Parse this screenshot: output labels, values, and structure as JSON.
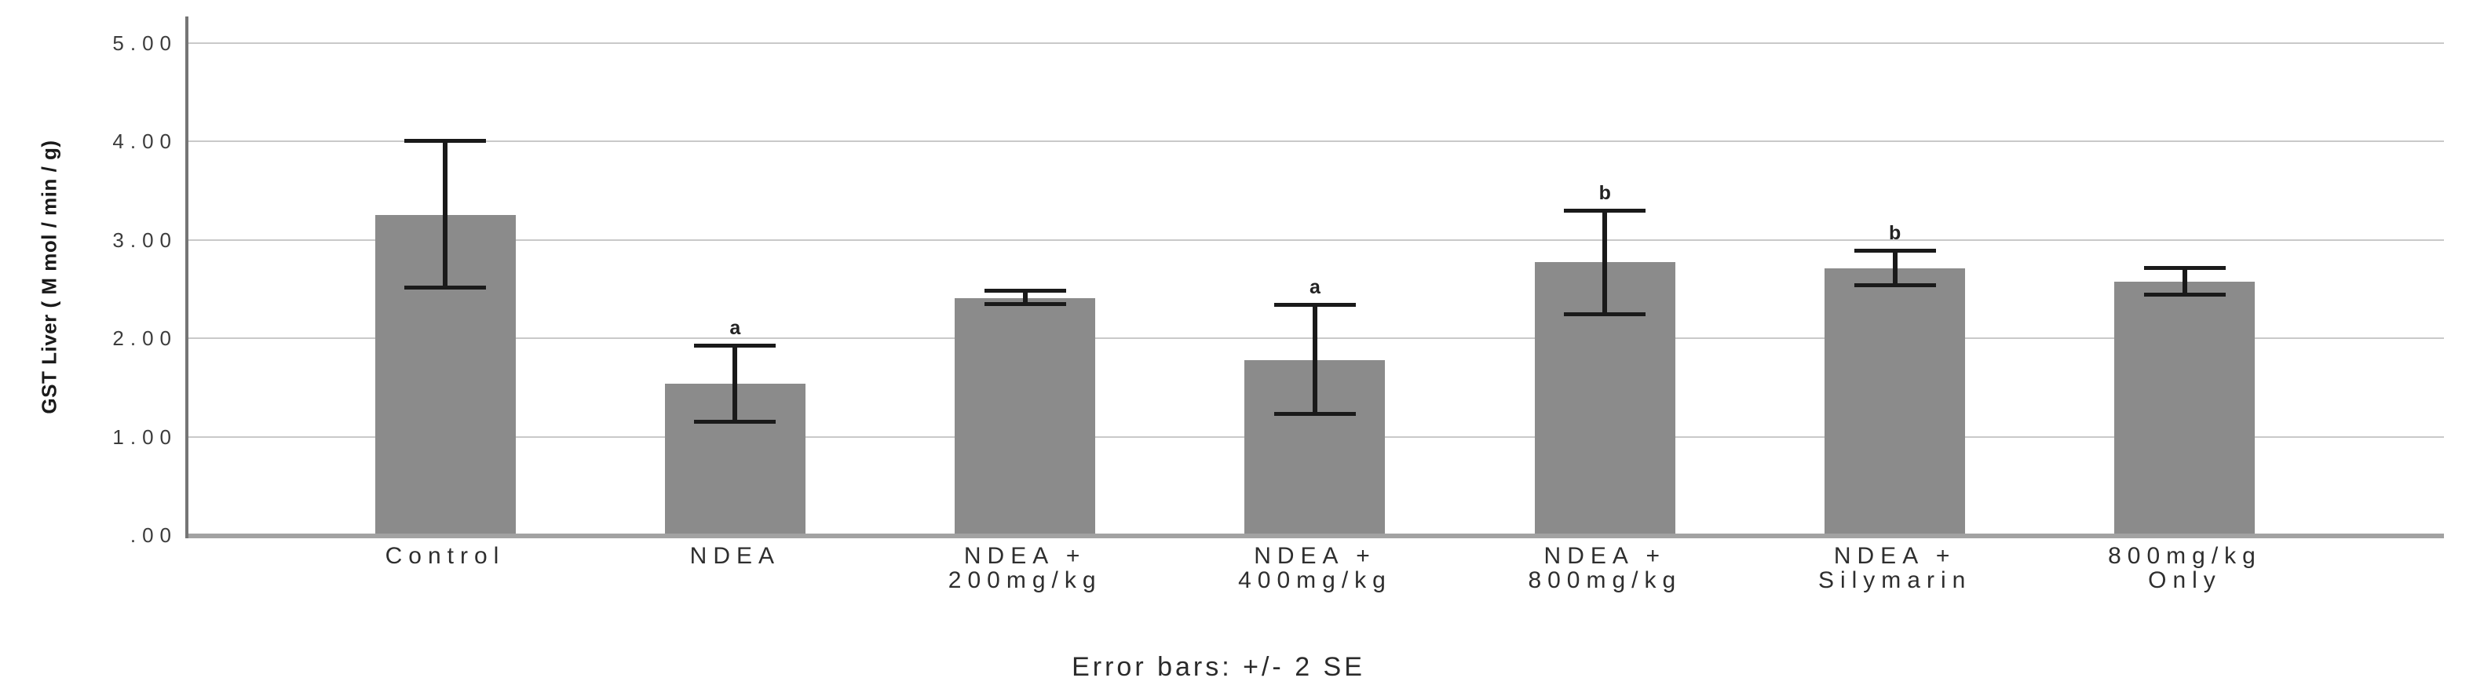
{
  "chart_data": {
    "type": "bar",
    "title": "",
    "ylabel": "GST Liver ( M mol / min / g)",
    "xlabel": "",
    "caption": "Error bars: +/- 2 SE",
    "ylim": [
      0,
      5.27
    ],
    "ytick_step": 1,
    "yticks": [
      {
        "value": 5,
        "label": "5.00"
      },
      {
        "value": 4,
        "label": "4.00"
      },
      {
        "value": 3,
        "label": "3.00"
      },
      {
        "value": 2,
        "label": "2.00"
      },
      {
        "value": 1,
        "label": "1.00"
      },
      {
        "value": 0,
        "label": ".00"
      }
    ],
    "grid": "horizontal gridlines every 1.00, no vertical grid",
    "legend_position": "none",
    "bar_color": "#8b8b8b",
    "error_bar_color": "#1a1a1a",
    "categories": [
      "Control",
      "NDEA",
      "NDEA + 200mg/kg",
      "NDEA + 400mg/kg",
      "NDEA + 800mg/kg",
      "NDEA + Silymarin",
      "800mg/kg Only"
    ],
    "category_label_lines": [
      [
        "Control"
      ],
      [
        "NDEA"
      ],
      [
        "NDEA +",
        "200mg/kg"
      ],
      [
        "NDEA +",
        "400mg/kg"
      ],
      [
        "NDEA +",
        "800mg/kg"
      ],
      [
        "NDEA +",
        "Silymarin"
      ],
      [
        "800mg/kg",
        "Only"
      ]
    ],
    "series": [
      {
        "name": "GST Liver mean (M mol / min / g)",
        "values": [
          3.25,
          1.54,
          2.41,
          1.78,
          2.77,
          2.71,
          2.57
        ]
      }
    ],
    "error_bars": {
      "kind": "+/- 2 SE",
      "upper": [
        4.01,
        1.93,
        2.49,
        2.34,
        3.3,
        2.89,
        2.72
      ],
      "lower": [
        2.51,
        1.15,
        2.34,
        1.23,
        2.24,
        2.53,
        2.44
      ]
    },
    "significance_letters": [
      "",
      "a",
      "",
      "a",
      "b",
      "b",
      ""
    ]
  }
}
